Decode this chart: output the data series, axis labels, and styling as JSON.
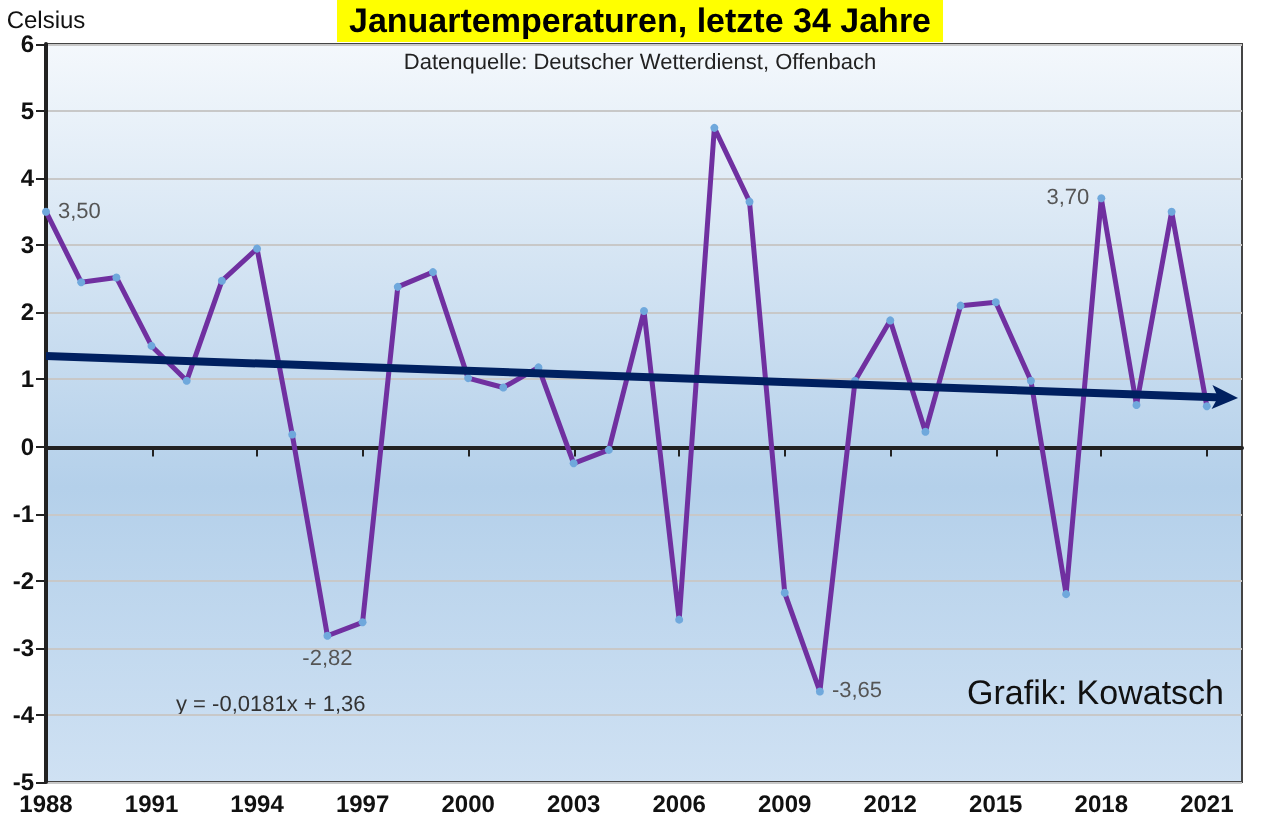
{
  "chart_data": {
    "type": "line",
    "title": "Januartemperaturen, letzte 34 Jahre",
    "subtitle": "Datenquelle: Deutscher Wetterdienst, Offenbach",
    "ylabel": "Celsius",
    "annotations": [
      "y = -0,0181x + 1,36",
      "Grafik: Kowatsch"
    ],
    "x": [
      1988,
      1989,
      1990,
      1991,
      1992,
      1993,
      1994,
      1995,
      1996,
      1997,
      1998,
      1999,
      2000,
      2001,
      2002,
      2003,
      2004,
      2005,
      2006,
      2007,
      2008,
      2009,
      2010,
      2011,
      2012,
      2013,
      2014,
      2015,
      2016,
      2017,
      2018,
      2019,
      2020,
      2021
    ],
    "series": [
      {
        "color": "#7030a0",
        "marker": "circle",
        "values": [
          3.5,
          2.45,
          2.52,
          1.5,
          0.98,
          2.47,
          2.95,
          0.18,
          -2.82,
          -2.62,
          2.38,
          2.6,
          1.02,
          0.88,
          1.18,
          -0.25,
          -0.05,
          2.02,
          -2.58,
          4.75,
          3.65,
          -2.18,
          -3.65,
          0.98,
          1.88,
          0.22,
          2.1,
          2.15,
          0.98,
          -2.2,
          3.7,
          0.62,
          3.5,
          0.6
        ],
        "value_labels": [
          "3,50",
          null,
          null,
          null,
          null,
          null,
          null,
          null,
          "-2,82",
          null,
          null,
          null,
          null,
          null,
          null,
          null,
          null,
          null,
          null,
          null,
          null,
          null,
          "-3,65",
          null,
          null,
          null,
          null,
          null,
          null,
          null,
          "3,70",
          null,
          null,
          null
        ]
      }
    ],
    "xlim": [
      1988,
      2022
    ],
    "xticks": [
      1988,
      1991,
      1994,
      1997,
      2000,
      2003,
      2006,
      2009,
      2012,
      2015,
      2018,
      2021
    ],
    "ylim": [
      -5,
      6
    ],
    "yticks": [
      -5,
      -4,
      -3,
      -2,
      -1,
      0,
      1,
      2,
      3,
      4,
      5,
      6
    ],
    "grid": "y"
  }
}
